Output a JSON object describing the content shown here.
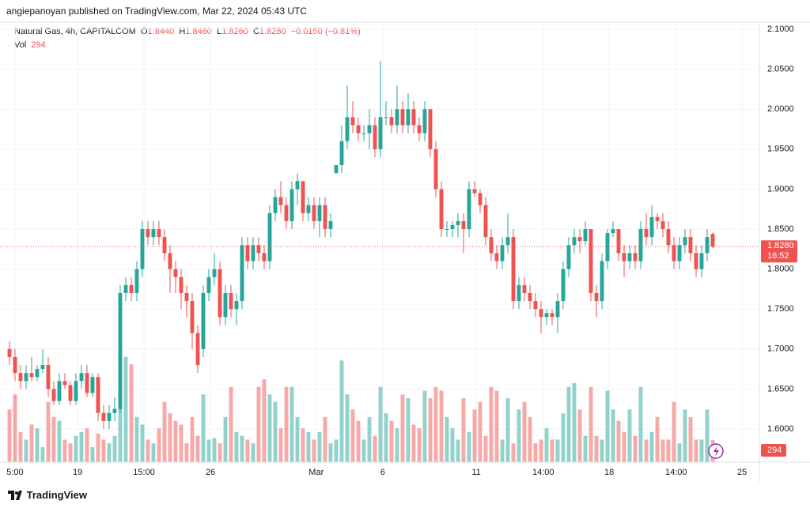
{
  "header": "angiepanoyan published on TradingView.com, Mar 22, 2024 05:43 UTC",
  "footer": "TradingView",
  "chart_data": {
    "type": "candlestick",
    "legend": {
      "symbol": "Natural Gas, 4h, CAPITALCOM",
      "o_label": "O",
      "o": "1.8440",
      "h_label": "H",
      "h": "1.8460",
      "l_label": "L",
      "l": "1.8260",
      "c_label": "C",
      "c": "1.8280",
      "change": "−0.0150 (−0.81%)",
      "vol_label": "Vol"
    },
    "last_price_label": "1.8280",
    "countdown": "16:52",
    "up_color": "#26a69a",
    "down_color": "#ef5350",
    "ylim": [
      1.5585,
      2.1089
    ],
    "yticks": [
      {
        "value": 1.6,
        "label": "1.6000"
      },
      {
        "value": 1.65,
        "label": "1.6500"
      },
      {
        "value": 1.7,
        "label": "1.7000"
      },
      {
        "value": 1.75,
        "label": "1.7500"
      },
      {
        "value": 1.8,
        "label": "1.8000"
      },
      {
        "value": 1.85,
        "label": "1.8500"
      },
      {
        "value": 1.9,
        "label": "1.9000"
      },
      {
        "value": 1.95,
        "label": "1.9500"
      },
      {
        "value": 2.0,
        "label": "2.0000"
      },
      {
        "value": 2.05,
        "label": "2.0500"
      },
      {
        "value": 2.1,
        "label": "2.1000"
      }
    ],
    "xlim": [
      -1.71,
      135.43
    ],
    "xticks": [
      {
        "value": 1,
        "label": "5:00"
      },
      {
        "value": 12.3,
        "label": "19"
      },
      {
        "value": 24.3,
        "label": "15:00"
      },
      {
        "value": 36.3,
        "label": "26"
      },
      {
        "value": 55.4,
        "label": "Mar"
      },
      {
        "value": 67.4,
        "label": "6"
      },
      {
        "value": 84.3,
        "label": "11"
      },
      {
        "value": 96.4,
        "label": "14:00"
      },
      {
        "value": 108.3,
        "label": "18"
      },
      {
        "value": 120.4,
        "label": "14:00"
      },
      {
        "value": 132.3,
        "label": "25"
      }
    ],
    "grid": true,
    "volume_ylim": [
      0,
      2100
    ],
    "candles": [
      [
        1.7,
        1.71,
        1.68,
        1.69
      ],
      [
        1.69,
        1.7,
        1.66,
        1.67
      ],
      [
        1.67,
        1.68,
        1.65,
        1.66
      ],
      [
        1.66,
        1.68,
        1.65,
        1.67
      ],
      [
        1.67,
        1.69,
        1.66,
        1.665
      ],
      [
        1.665,
        1.68,
        1.66,
        1.675
      ],
      [
        1.675,
        1.7,
        1.67,
        1.68
      ],
      [
        1.68,
        1.69,
        1.64,
        1.65
      ],
      [
        1.65,
        1.66,
        1.63,
        1.635
      ],
      [
        1.635,
        1.67,
        1.63,
        1.66
      ],
      [
        1.66,
        1.67,
        1.65,
        1.655
      ],
      [
        1.655,
        1.66,
        1.63,
        1.635
      ],
      [
        1.635,
        1.67,
        1.63,
        1.66
      ],
      [
        1.66,
        1.68,
        1.65,
        1.67
      ],
      [
        1.67,
        1.68,
        1.64,
        1.645
      ],
      [
        1.645,
        1.67,
        1.64,
        1.665
      ],
      [
        1.665,
        1.67,
        1.61,
        1.62
      ],
      [
        1.62,
        1.63,
        1.6,
        1.61
      ],
      [
        1.61,
        1.63,
        1.6,
        1.62
      ],
      [
        1.62,
        1.64,
        1.61,
        1.625
      ],
      [
        1.625,
        1.78,
        1.62,
        1.77
      ],
      [
        1.77,
        1.79,
        1.76,
        1.78
      ],
      [
        1.78,
        1.79,
        1.76,
        1.77
      ],
      [
        1.77,
        1.81,
        1.76,
        1.8
      ],
      [
        1.8,
        1.86,
        1.79,
        1.85
      ],
      [
        1.85,
        1.86,
        1.83,
        1.84
      ],
      [
        1.84,
        1.86,
        1.83,
        1.85
      ],
      [
        1.85,
        1.86,
        1.83,
        1.84
      ],
      [
        1.84,
        1.85,
        1.81,
        1.82
      ],
      [
        1.82,
        1.83,
        1.77,
        1.8
      ],
      [
        1.8,
        1.81,
        1.77,
        1.79
      ],
      [
        1.79,
        1.8,
        1.75,
        1.77
      ],
      [
        1.77,
        1.78,
        1.74,
        1.76
      ],
      [
        1.76,
        1.77,
        1.7,
        1.72
      ],
      [
        1.72,
        1.73,
        1.67,
        1.68
      ],
      [
        1.7,
        1.78,
        1.69,
        1.77
      ],
      [
        1.77,
        1.8,
        1.76,
        1.79
      ],
      [
        1.79,
        1.82,
        1.78,
        1.8
      ],
      [
        1.8,
        1.81,
        1.73,
        1.74
      ],
      [
        1.74,
        1.78,
        1.73,
        1.77
      ],
      [
        1.77,
        1.78,
        1.74,
        1.75
      ],
      [
        1.75,
        1.77,
        1.73,
        1.76
      ],
      [
        1.76,
        1.84,
        1.75,
        1.83
      ],
      [
        1.83,
        1.84,
        1.8,
        1.81
      ],
      [
        1.81,
        1.84,
        1.8,
        1.83
      ],
      [
        1.83,
        1.84,
        1.81,
        1.82
      ],
      [
        1.82,
        1.83,
        1.8,
        1.81
      ],
      [
        1.81,
        1.88,
        1.8,
        1.87
      ],
      [
        1.87,
        1.9,
        1.86,
        1.89
      ],
      [
        1.89,
        1.91,
        1.87,
        1.88
      ],
      [
        1.88,
        1.89,
        1.85,
        1.86
      ],
      [
        1.86,
        1.91,
        1.85,
        1.9
      ],
      [
        1.9,
        1.92,
        1.88,
        1.91
      ],
      [
        1.91,
        1.91,
        1.86,
        1.87
      ],
      [
        1.87,
        1.89,
        1.86,
        1.88
      ],
      [
        1.88,
        1.89,
        1.85,
        1.86
      ],
      [
        1.86,
        1.89,
        1.84,
        1.88
      ],
      [
        1.88,
        1.89,
        1.84,
        1.85
      ],
      [
        1.85,
        1.87,
        1.84,
        1.86
      ],
      [
        1.92,
        1.93,
        1.92,
        1.93
      ],
      [
        1.93,
        1.98,
        1.92,
        1.96
      ],
      [
        1.96,
        2.03,
        1.95,
        1.99
      ],
      [
        1.99,
        2.01,
        1.97,
        1.98
      ],
      [
        1.98,
        1.99,
        1.96,
        1.97
      ],
      [
        1.97,
        1.98,
        1.96,
        1.97
      ],
      [
        1.97,
        2.0,
        1.95,
        1.98
      ],
      [
        1.98,
        1.99,
        1.94,
        1.95
      ],
      [
        1.95,
        2.06,
        1.94,
        1.99
      ],
      [
        1.99,
        2.01,
        1.98,
        1.99
      ],
      [
        1.99,
        2.0,
        1.97,
        1.98
      ],
      [
        1.98,
        2.03,
        1.97,
        2.0
      ],
      [
        2.0,
        2.01,
        1.97,
        1.98
      ],
      [
        1.98,
        2.02,
        1.97,
        2.0
      ],
      [
        2.0,
        2.01,
        1.97,
        1.98
      ],
      [
        1.98,
        1.99,
        1.96,
        1.97
      ],
      [
        1.97,
        2.01,
        1.96,
        2.0
      ],
      [
        2.0,
        2.0,
        1.94,
        1.95
      ],
      [
        1.95,
        1.96,
        1.89,
        1.9
      ],
      [
        1.9,
        1.91,
        1.84,
        1.85
      ],
      [
        1.85,
        1.86,
        1.84,
        1.85
      ],
      [
        1.85,
        1.86,
        1.84,
        1.855
      ],
      [
        1.855,
        1.87,
        1.84,
        1.86
      ],
      [
        1.86,
        1.87,
        1.82,
        1.85
      ],
      [
        1.85,
        1.91,
        1.84,
        1.9
      ],
      [
        1.9,
        1.91,
        1.89,
        1.895
      ],
      [
        1.895,
        1.9,
        1.87,
        1.88
      ],
      [
        1.88,
        1.89,
        1.83,
        1.84
      ],
      [
        1.84,
        1.85,
        1.81,
        1.82
      ],
      [
        1.82,
        1.83,
        1.8,
        1.81
      ],
      [
        1.81,
        1.84,
        1.8,
        1.83
      ],
      [
        1.83,
        1.87,
        1.82,
        1.84
      ],
      [
        1.84,
        1.85,
        1.75,
        1.76
      ],
      [
        1.76,
        1.79,
        1.75,
        1.78
      ],
      [
        1.78,
        1.79,
        1.76,
        1.77
      ],
      [
        1.77,
        1.78,
        1.75,
        1.76
      ],
      [
        1.76,
        1.77,
        1.74,
        1.75
      ],
      [
        1.75,
        1.76,
        1.72,
        1.74
      ],
      [
        1.74,
        1.75,
        1.73,
        1.745
      ],
      [
        1.745,
        1.75,
        1.73,
        1.74
      ],
      [
        1.74,
        1.77,
        1.72,
        1.76
      ],
      [
        1.76,
        1.81,
        1.75,
        1.8
      ],
      [
        1.8,
        1.84,
        1.79,
        1.83
      ],
      [
        1.83,
        1.85,
        1.82,
        1.84
      ],
      [
        1.84,
        1.85,
        1.82,
        1.835
      ],
      [
        1.835,
        1.86,
        1.83,
        1.85
      ],
      [
        1.85,
        1.85,
        1.76,
        1.77
      ],
      [
        1.77,
        1.78,
        1.74,
        1.76
      ],
      [
        1.76,
        1.82,
        1.75,
        1.81
      ],
      [
        1.81,
        1.85,
        1.8,
        1.845
      ],
      [
        1.845,
        1.86,
        1.84,
        1.85
      ],
      [
        1.85,
        1.85,
        1.81,
        1.82
      ],
      [
        1.82,
        1.83,
        1.79,
        1.81
      ],
      [
        1.81,
        1.83,
        1.8,
        1.82
      ],
      [
        1.82,
        1.83,
        1.8,
        1.81
      ],
      [
        1.81,
        1.86,
        1.8,
        1.85
      ],
      [
        1.85,
        1.87,
        1.83,
        1.84
      ],
      [
        1.84,
        1.88,
        1.83,
        1.865
      ],
      [
        1.865,
        1.87,
        1.85,
        1.86
      ],
      [
        1.86,
        1.87,
        1.84,
        1.85
      ],
      [
        1.85,
        1.86,
        1.82,
        1.83
      ],
      [
        1.83,
        1.84,
        1.8,
        1.81
      ],
      [
        1.81,
        1.84,
        1.8,
        1.83
      ],
      [
        1.83,
        1.85,
        1.82,
        1.84
      ],
      [
        1.84,
        1.85,
        1.81,
        1.82
      ],
      [
        1.82,
        1.83,
        1.79,
        1.8
      ],
      [
        1.8,
        1.83,
        1.79,
        1.82
      ],
      [
        1.82,
        1.85,
        1.81,
        1.84
      ],
      [
        1.844,
        1.846,
        1.826,
        1.828
      ]
    ],
    "volume": [
      700,
      900,
      400,
      300,
      500,
      450,
      200,
      800,
      600,
      550,
      300,
      250,
      350,
      400,
      450,
      200,
      380,
      300,
      250,
      350,
      900,
      1400,
      1300,
      600,
      500,
      300,
      250,
      450,
      800,
      650,
      550,
      500,
      250,
      600,
      350,
      900,
      300,
      320,
      250,
      600,
      1000,
      400,
      350,
      300,
      250,
      1000,
      1100,
      900,
      800,
      450,
      1000,
      1000,
      600,
      450,
      400,
      300,
      400,
      600,
      250,
      300,
      1350,
      900,
      700,
      550,
      300,
      600,
      350,
      1000,
      650,
      550,
      450,
      900,
      850,
      500,
      450,
      950,
      850,
      1000,
      950,
      600,
      450,
      300,
      850,
      400,
      700,
      800,
      350,
      1000,
      950,
      300,
      850,
      250,
      700,
      800,
      600,
      250,
      300,
      450,
      300,
      300,
      650,
      1000,
      1050,
      700,
      350,
      1000,
      350,
      300,
      950,
      700,
      550,
      400,
      700,
      350,
      1000,
      300,
      400,
      600,
      300,
      300,
      800,
      250,
      700,
      600,
      300,
      300,
      700,
      294
    ]
  }
}
